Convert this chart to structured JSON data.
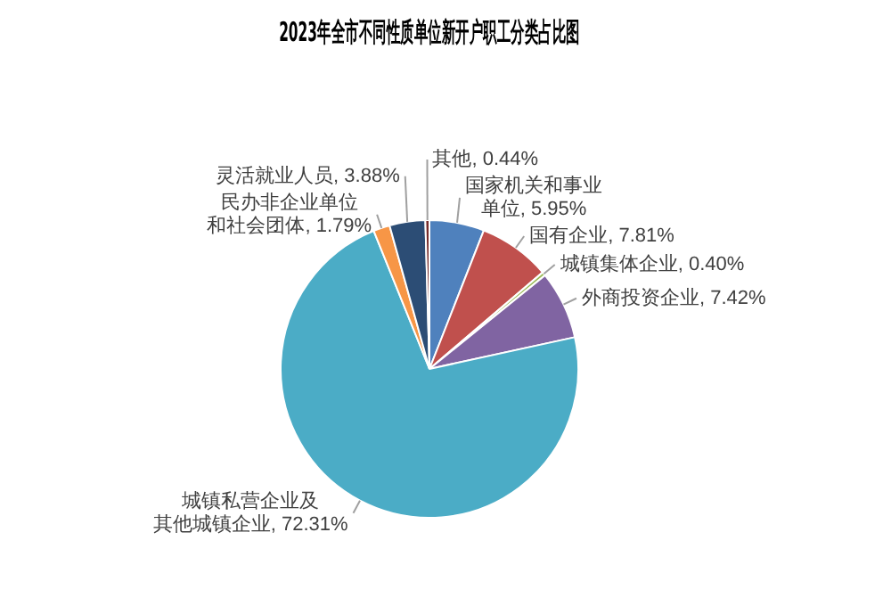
{
  "chart_data": {
    "type": "pie",
    "title": "2023年全市不同性质单位新开户职工分类占比图",
    "categories": [
      "国家机关和事业单位",
      "国有企业",
      "城镇集体企业",
      "外商投资企业",
      "城镇私营企业及其他城镇企业",
      "民办非企业单位和社会团体",
      "灵活就业人员",
      "其他"
    ],
    "values": [
      5.95,
      7.81,
      0.4,
      7.42,
      72.31,
      1.79,
      3.88,
      0.44
    ],
    "value_labels": [
      "5.95%",
      "7.81%",
      "0.40%",
      "7.42%",
      "72.31%",
      "1.79%",
      "3.88%",
      "0.44%"
    ],
    "colors": [
      "#4f81bd",
      "#c0504d",
      "#9bbb59",
      "#8064a2",
      "#4bacc6",
      "#f79646",
      "#2c4d75",
      "#772c2a"
    ],
    "legend": false
  }
}
